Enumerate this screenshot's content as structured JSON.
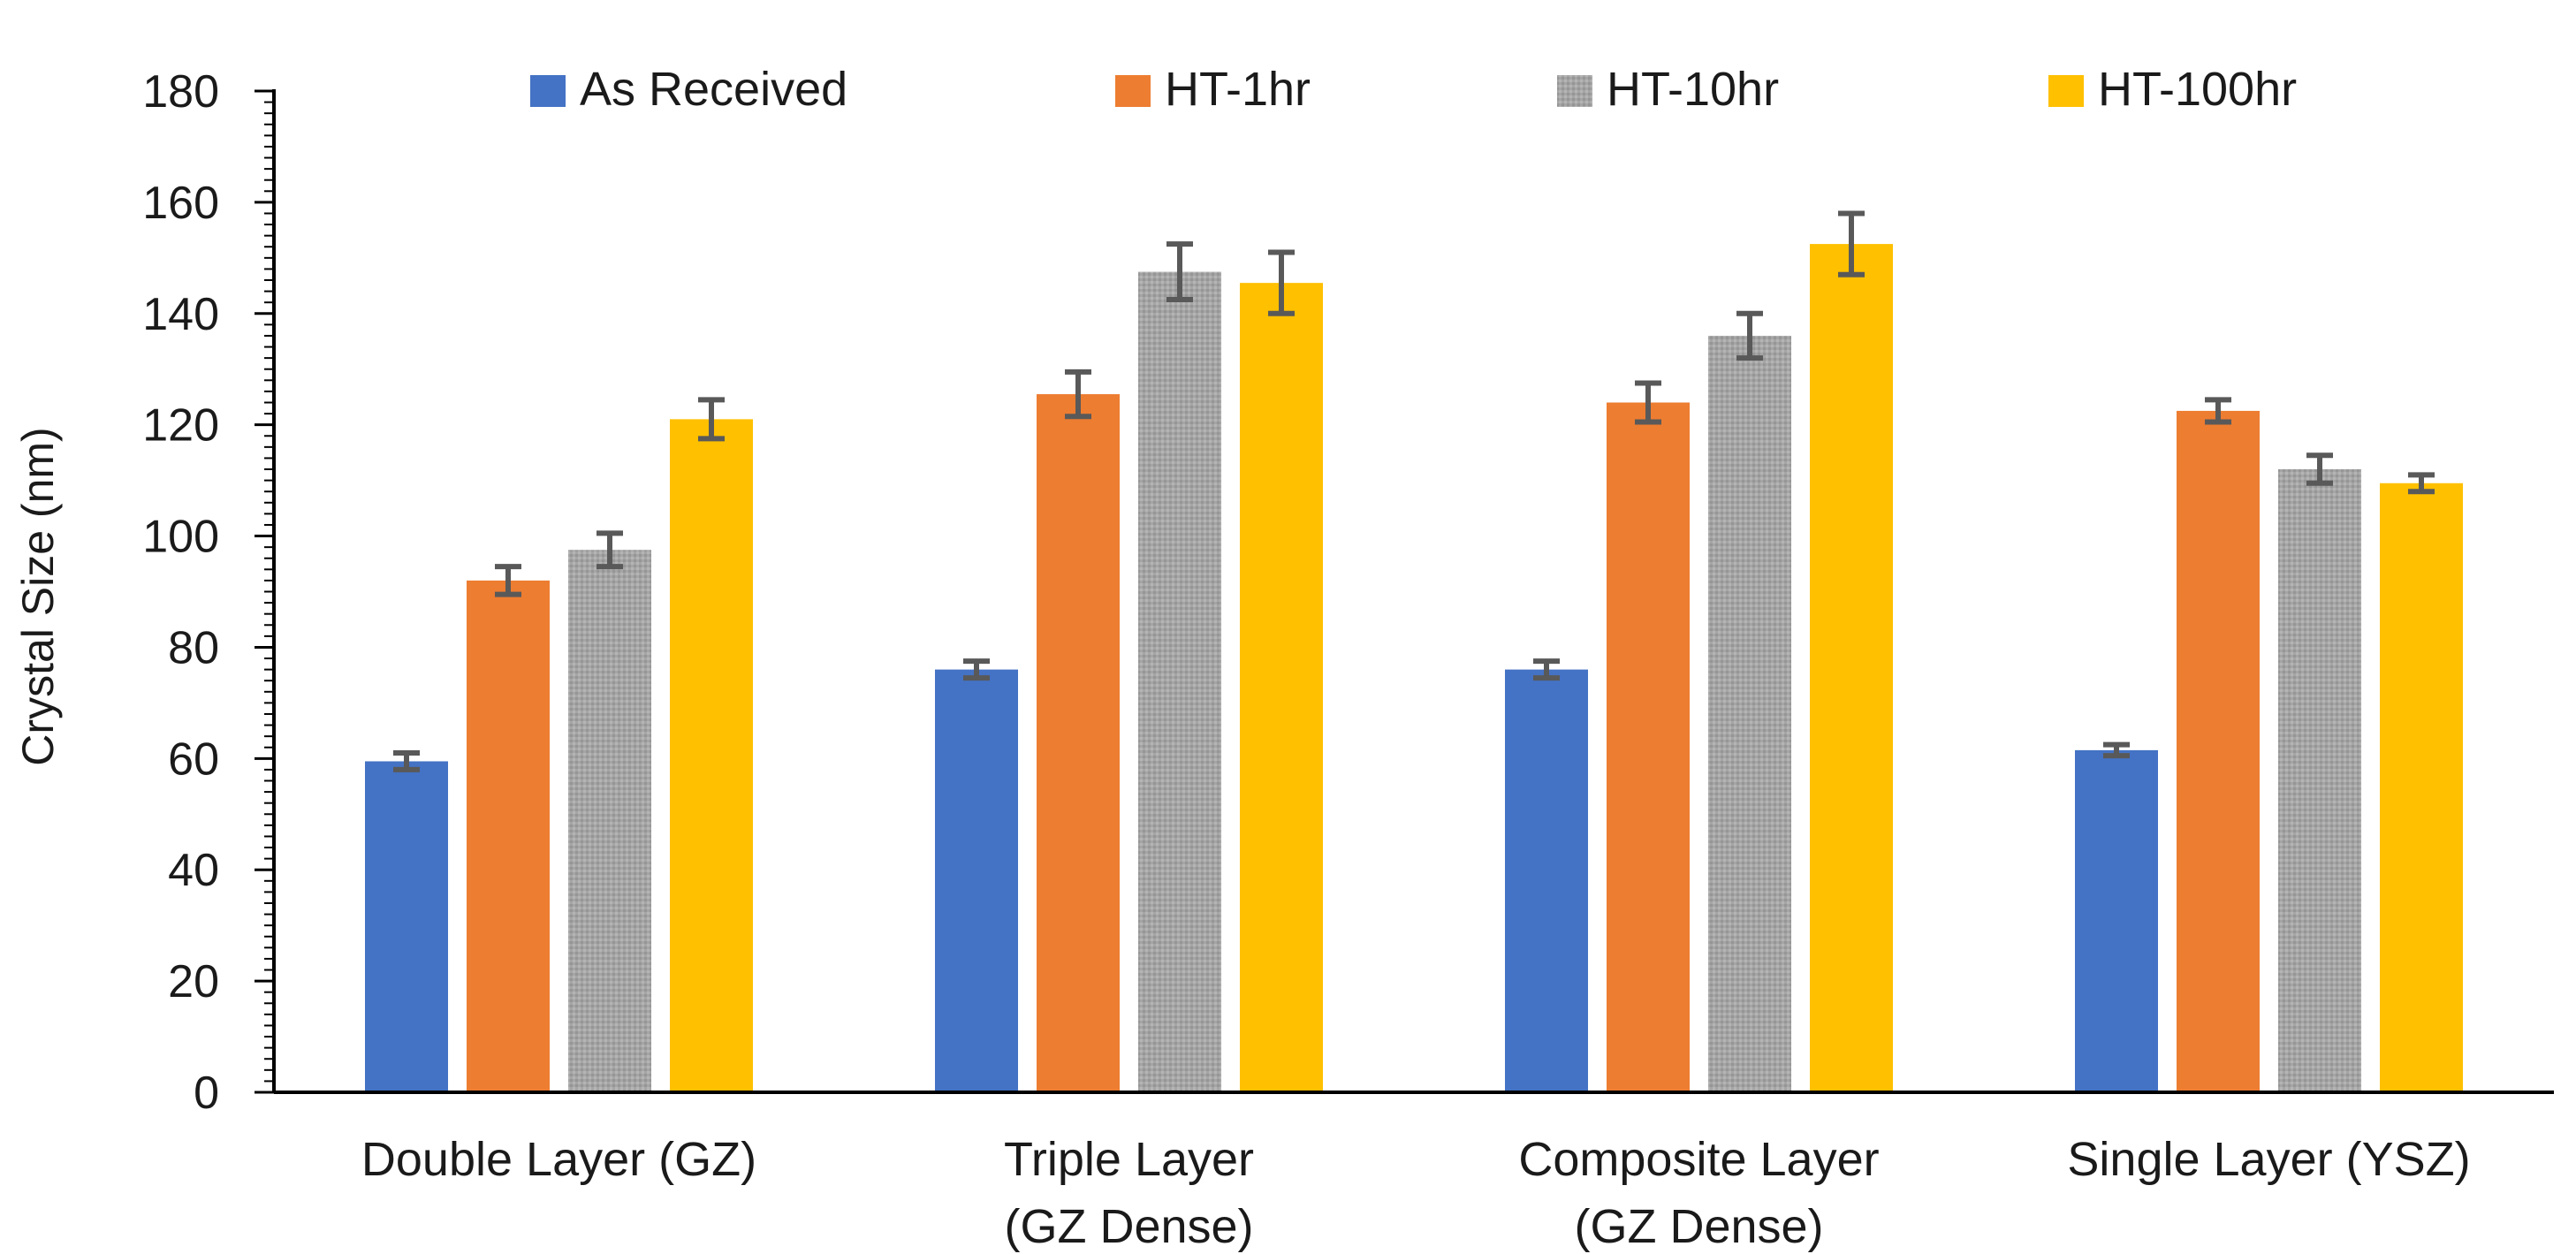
{
  "chart_data": {
    "type": "bar",
    "title": "",
    "xlabel": "",
    "ylabel": "Crystal Size (nm)",
    "ylim": [
      0,
      180
    ],
    "ytick_step": 20,
    "categories": [
      [
        "Double Layer (GZ)"
      ],
      [
        "Triple Layer",
        "(GZ Dense)"
      ],
      [
        "Composite Layer",
        "(GZ Dense)"
      ],
      [
        "Single Layer (YSZ)"
      ]
    ],
    "legend_position": "top",
    "series": [
      {
        "name": "As Received",
        "color": "#4472C4",
        "values": [
          59.5,
          76,
          76,
          61.5
        ],
        "errors": [
          1.5,
          1.5,
          1.5,
          1
        ]
      },
      {
        "name": "HT-1hr",
        "color": "#ED7D31",
        "values": [
          92,
          125.5,
          124,
          122.5
        ],
        "errors": [
          2.5,
          4,
          3.5,
          2
        ]
      },
      {
        "name": "HT-10hr",
        "color": "#A5A5A5",
        "values": [
          97.5,
          147.5,
          136,
          112
        ],
        "errors": [
          3,
          5,
          4,
          2.5
        ]
      },
      {
        "name": "HT-100hr",
        "color": "#FFC000",
        "values": [
          121,
          145.5,
          152.5,
          109.5
        ],
        "errors": [
          3.5,
          5.5,
          5.5,
          1.5
        ]
      }
    ]
  }
}
